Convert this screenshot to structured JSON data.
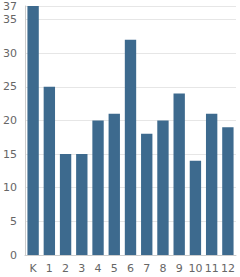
{
  "chart_data": {
    "type": "bar",
    "categories": [
      "K",
      "1",
      "2",
      "3",
      "4",
      "5",
      "6",
      "7",
      "8",
      "9",
      "10",
      "11",
      "12"
    ],
    "values": [
      37,
      25,
      15,
      15,
      20,
      21,
      32,
      18,
      20,
      24,
      14,
      21,
      19
    ],
    "color": "#3d6a8e",
    "ylim": [
      0,
      37
    ],
    "yticks": [
      0,
      5,
      10,
      15,
      20,
      25,
      30,
      35
    ],
    "grid": true
  }
}
